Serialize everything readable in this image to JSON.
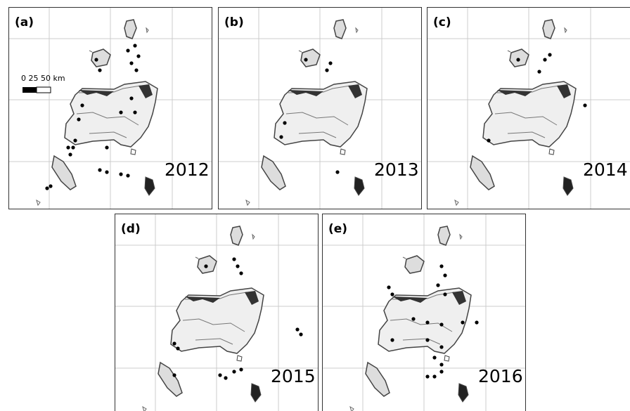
{
  "panels": [
    {
      "label": "(a)",
      "year": "2012"
    },
    {
      "label": "(b)",
      "year": "2013"
    },
    {
      "label": "(c)",
      "year": "2014"
    },
    {
      "label": "(d)",
      "year": "2015"
    },
    {
      "label": "(e)",
      "year": "2016"
    }
  ],
  "scale_bar": {
    "label": "0  25 50 km"
  }
}
